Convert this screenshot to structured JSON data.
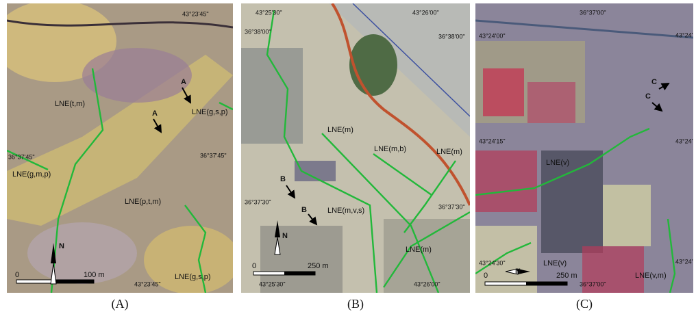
{
  "panels": [
    {
      "caption": "(A)",
      "labels": [
        "43°23'45\"",
        "LNE(t,m)",
        "A",
        "A",
        "LNE(g,s,p)",
        "36°37'45\"",
        "36°37'45\"",
        "LNE(g,m,p)",
        "LNE(p,t,m)",
        "N",
        "0",
        "100 m",
        "43°23'45\"",
        "LNE(g,s,p)"
      ]
    },
    {
      "caption": "(B)",
      "labels": [
        "43°25'30\"",
        "43°26'00\"",
        "36°38'00\"",
        "36°38'00\"",
        "LNE(m)",
        "LNE(m,b)",
        "LNE(m)",
        "B",
        "B",
        "LNE(m,v,s)",
        "36°37'30\"",
        "36°37'30\"",
        "N",
        "LNE(m)",
        "0",
        "250 m",
        "43°25'30\"",
        "43°26'00\""
      ]
    },
    {
      "caption": "(C)",
      "labels": [
        "36°37'00\"",
        "43°24'00\"",
        "43°24'",
        "C",
        "C",
        "43°24'15\"",
        "43°24'",
        "LNE(v)",
        "43°24'30\"",
        "LNE(v)",
        "43°24'",
        "LNE(v,m)",
        "N",
        "0",
        "250 m",
        "36°37'00\""
      ]
    }
  ]
}
